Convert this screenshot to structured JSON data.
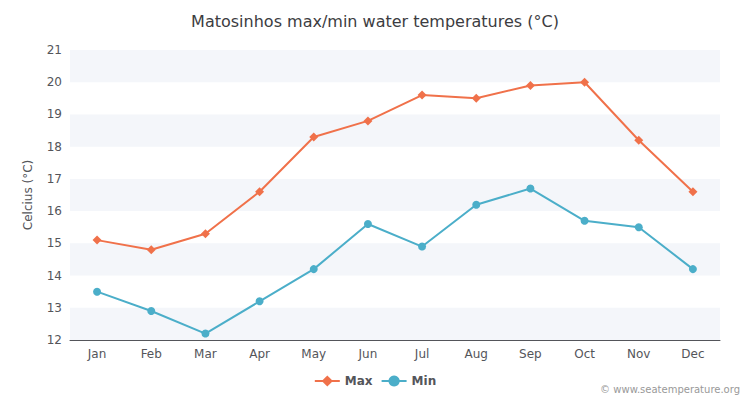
{
  "chart_data": {
    "type": "line",
    "title": "Matosinhos max/min water temperatures (°C)",
    "ylabel": "Celcius (°C)",
    "categories": [
      "Jan",
      "Feb",
      "Mar",
      "Apr",
      "May",
      "Jun",
      "Jul",
      "Aug",
      "Sep",
      "Oct",
      "Nov",
      "Dec"
    ],
    "series": [
      {
        "name": "Max",
        "color": "#f0714a",
        "marker": "diamond",
        "line_style": "solid",
        "values": [
          15.1,
          14.8,
          15.3,
          16.6,
          18.3,
          18.8,
          19.6,
          19.5,
          19.9,
          20.0,
          18.2,
          16.6
        ]
      },
      {
        "name": "Min",
        "color": "#4baec9",
        "marker": "circle",
        "line_style": "solid",
        "values": [
          13.5,
          12.9,
          12.2,
          13.2,
          14.2,
          15.6,
          14.9,
          16.2,
          16.7,
          15.7,
          15.5,
          14.2
        ]
      }
    ],
    "ylim": [
      12,
      21
    ],
    "yticks": [
      12,
      13,
      14,
      15,
      16,
      17,
      18,
      19,
      20,
      21
    ],
    "grid": false,
    "legend": "bottom",
    "annotations": [
      "© www.seatemperature.org"
    ]
  }
}
